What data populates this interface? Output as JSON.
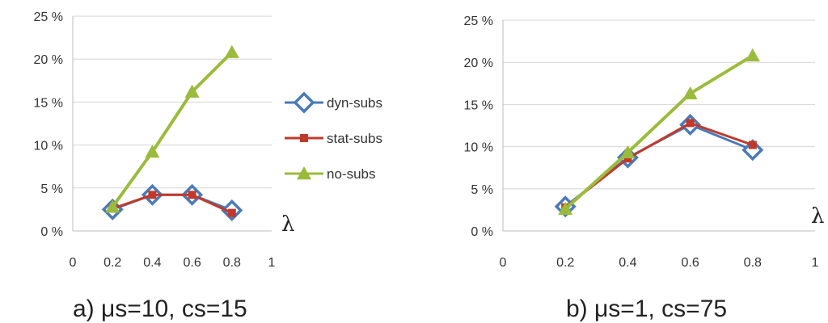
{
  "chart_data": [
    {
      "type": "line",
      "caption": "a) μs=10, cs=15",
      "x_axis_symbol": "λ",
      "xlim": [
        0,
        1
      ],
      "xticks": [
        "0",
        "0.2",
        "0.4",
        "0.6",
        "0.8",
        "1"
      ],
      "ylim": [
        0,
        25
      ],
      "yticks": [
        "0 %",
        "5 %",
        "10 %",
        "15 %",
        "20 %",
        "25 %"
      ],
      "grid": "horizontal",
      "x": [
        0.2,
        0.4,
        0.6,
        0.8
      ],
      "series": [
        {
          "name": "dyn-subs",
          "values": [
            2.5,
            4.2,
            4.2,
            2.4
          ],
          "color": "#4a7ab8",
          "marker": "diamond"
        },
        {
          "name": "stat-subs",
          "values": [
            2.6,
            4.2,
            4.2,
            2.1
          ],
          "color": "#c0392b",
          "marker": "square"
        },
        {
          "name": "no-subs",
          "values": [
            2.8,
            9.2,
            16.2,
            20.8
          ],
          "color": "#9bbb3c",
          "marker": "triangle"
        }
      ]
    },
    {
      "type": "line",
      "caption": "b) μs=1, cs=75",
      "x_axis_symbol": "λ",
      "xlim": [
        0,
        1
      ],
      "xticks": [
        "0",
        "0.2",
        "0.4",
        "0.6",
        "0.8",
        "1"
      ],
      "ylim": [
        0,
        25
      ],
      "yticks": [
        "0 %",
        "5 %",
        "10 %",
        "15 %",
        "20 %",
        "25 %"
      ],
      "grid": "horizontal",
      "x": [
        0.2,
        0.4,
        0.6,
        0.8
      ],
      "series": [
        {
          "name": "dyn-subs",
          "values": [
            2.9,
            8.7,
            12.6,
            9.6
          ],
          "color": "#4a7ab8",
          "marker": "diamond"
        },
        {
          "name": "stat-subs",
          "values": [
            2.8,
            8.6,
            12.8,
            10.2
          ],
          "color": "#c0392b",
          "marker": "square"
        },
        {
          "name": "no-subs",
          "values": [
            2.6,
            9.3,
            16.3,
            20.8
          ],
          "color": "#9bbb3c",
          "marker": "triangle"
        }
      ]
    }
  ],
  "legend": {
    "placement": "between charts",
    "entries": [
      {
        "label": "dyn-subs",
        "color": "#4a7ab8",
        "marker": "diamond"
      },
      {
        "label": "stat-subs",
        "color": "#c0392b",
        "marker": "square"
      },
      {
        "label": "no-subs",
        "color": "#9bbb3c",
        "marker": "triangle"
      }
    ]
  }
}
